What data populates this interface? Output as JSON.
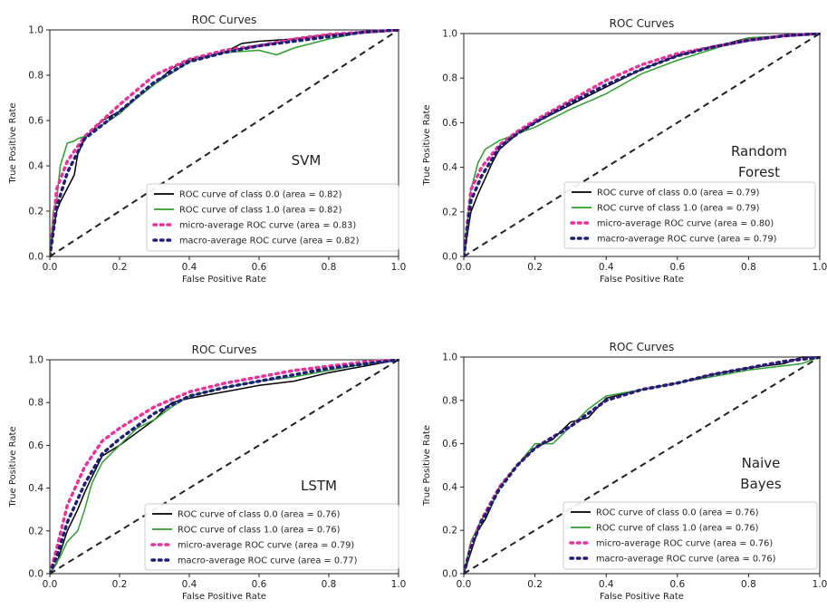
{
  "chart_data": [
    {
      "type": "line",
      "title": "ROC Curves",
      "xlabel": "False Positive Rate",
      "ylabel": "True Positive Rate",
      "annotation": [
        "SVM"
      ],
      "xlim": [
        0,
        1
      ],
      "ylim": [
        0,
        1.0
      ],
      "xticks": [
        "0.0",
        "0.2",
        "0.4",
        "0.6",
        "0.8",
        "1.0"
      ],
      "yticks": [
        "0.0",
        "0.2",
        "0.4",
        "0.6",
        "0.8",
        "1.0"
      ],
      "legend_position": "lower-right",
      "series": [
        {
          "name": "ROC curve of class 0.0 (area = 0.82)",
          "color": "#000000",
          "style": "solid",
          "x": [
            0,
            0.01,
            0.02,
            0.03,
            0.05,
            0.07,
            0.08,
            0.1,
            0.15,
            0.2,
            0.25,
            0.3,
            0.35,
            0.4,
            0.5,
            0.55,
            0.6,
            0.7,
            0.8,
            0.9,
            1.0
          ],
          "y": [
            0,
            0.12,
            0.2,
            0.24,
            0.3,
            0.36,
            0.45,
            0.52,
            0.6,
            0.64,
            0.7,
            0.76,
            0.83,
            0.87,
            0.9,
            0.94,
            0.95,
            0.96,
            0.98,
            0.99,
            1.0
          ]
        },
        {
          "name": "ROC curve of class 1.0 (area = 0.82)",
          "color": "#2ca02c",
          "style": "solid",
          "x": [
            0,
            0.01,
            0.02,
            0.03,
            0.05,
            0.07,
            0.08,
            0.1,
            0.15,
            0.2,
            0.25,
            0.3,
            0.4,
            0.5,
            0.6,
            0.65,
            0.7,
            0.8,
            0.9,
            1.0
          ],
          "y": [
            0,
            0.2,
            0.25,
            0.4,
            0.5,
            0.51,
            0.52,
            0.53,
            0.58,
            0.63,
            0.7,
            0.76,
            0.86,
            0.9,
            0.91,
            0.89,
            0.92,
            0.96,
            0.99,
            1.0
          ]
        },
        {
          "name": "micro-average ROC curve (area = 0.83)",
          "color": "#e8349a",
          "style": "dotted",
          "x": [
            0,
            0.02,
            0.05,
            0.1,
            0.15,
            0.2,
            0.3,
            0.4,
            0.5,
            0.6,
            0.7,
            0.8,
            0.9,
            1.0
          ],
          "y": [
            0,
            0.3,
            0.42,
            0.53,
            0.6,
            0.67,
            0.8,
            0.87,
            0.91,
            0.93,
            0.96,
            0.98,
            0.99,
            1.0
          ]
        },
        {
          "name": "macro-average ROC curve (area = 0.82)",
          "color": "#1f1f7a",
          "style": "dotted",
          "x": [
            0,
            0.02,
            0.05,
            0.1,
            0.15,
            0.2,
            0.3,
            0.4,
            0.5,
            0.6,
            0.7,
            0.8,
            0.9,
            1.0
          ],
          "y": [
            0,
            0.22,
            0.37,
            0.52,
            0.58,
            0.64,
            0.77,
            0.86,
            0.9,
            0.93,
            0.95,
            0.97,
            0.99,
            1.0
          ]
        },
        {
          "name": "",
          "color": "#222222",
          "style": "dashed",
          "x": [
            0,
            1
          ],
          "y": [
            0,
            1
          ]
        }
      ]
    },
    {
      "type": "line",
      "title": "ROC Curves",
      "xlabel": "False Positive Rate",
      "ylabel": "True Positive Rate",
      "annotation": [
        "Random",
        "Forest"
      ],
      "xlim": [
        0,
        1
      ],
      "ylim": [
        0,
        1.0
      ],
      "xticks": [
        "0.0",
        "0.2",
        "0.4",
        "0.6",
        "0.8",
        "1.0"
      ],
      "yticks": [
        "0.0",
        "0.2",
        "0.4",
        "0.6",
        "0.8",
        "1.0"
      ],
      "legend_position": "lower-right",
      "series": [
        {
          "name": "ROC curve of class 0.0 (area = 0.79)",
          "color": "#000000",
          "style": "solid",
          "x": [
            0,
            0.02,
            0.04,
            0.06,
            0.08,
            0.1,
            0.15,
            0.2,
            0.3,
            0.4,
            0.5,
            0.6,
            0.7,
            0.8,
            0.9,
            1.0
          ],
          "y": [
            0,
            0.2,
            0.28,
            0.35,
            0.42,
            0.48,
            0.55,
            0.6,
            0.68,
            0.76,
            0.84,
            0.9,
            0.94,
            0.98,
            0.99,
            1.0
          ]
        },
        {
          "name": "ROC curve of class 1.0 (area = 0.79)",
          "color": "#2ca02c",
          "style": "solid",
          "x": [
            0,
            0.02,
            0.04,
            0.06,
            0.08,
            0.1,
            0.15,
            0.2,
            0.3,
            0.4,
            0.5,
            0.6,
            0.7,
            0.78,
            0.8,
            0.9,
            1.0
          ],
          "y": [
            0,
            0.3,
            0.42,
            0.48,
            0.5,
            0.52,
            0.55,
            0.58,
            0.66,
            0.73,
            0.82,
            0.88,
            0.93,
            0.97,
            0.98,
            0.99,
            1.0
          ]
        },
        {
          "name": "micro-average ROC curve (area = 0.80)",
          "color": "#e8349a",
          "style": "dotted",
          "x": [
            0,
            0.02,
            0.05,
            0.1,
            0.15,
            0.2,
            0.3,
            0.4,
            0.5,
            0.6,
            0.7,
            0.8,
            0.9,
            1.0
          ],
          "y": [
            0,
            0.3,
            0.4,
            0.5,
            0.56,
            0.61,
            0.7,
            0.79,
            0.86,
            0.91,
            0.94,
            0.97,
            0.99,
            1.0
          ]
        },
        {
          "name": "macro-average ROC curve (area = 0.79)",
          "color": "#1f1f7a",
          "style": "dotted",
          "x": [
            0,
            0.02,
            0.05,
            0.1,
            0.15,
            0.2,
            0.3,
            0.4,
            0.5,
            0.6,
            0.7,
            0.8,
            0.9,
            1.0
          ],
          "y": [
            0,
            0.25,
            0.36,
            0.49,
            0.55,
            0.6,
            0.69,
            0.77,
            0.84,
            0.9,
            0.94,
            0.97,
            0.99,
            1.0
          ]
        },
        {
          "name": "",
          "color": "#222222",
          "style": "dashed",
          "x": [
            0,
            1
          ],
          "y": [
            0,
            1
          ]
        }
      ]
    },
    {
      "type": "line",
      "title": "ROC Curves",
      "xlabel": "False Positive Rate",
      "ylabel": "True Positive Rate",
      "annotation": [
        "LSTM"
      ],
      "xlim": [
        0,
        1
      ],
      "ylim": [
        0,
        1.0
      ],
      "xticks": [
        "0.0",
        "0.2",
        "0.4",
        "0.6",
        "0.8",
        "1.0"
      ],
      "yticks": [
        "0.0",
        "0.2",
        "0.4",
        "0.6",
        "0.8",
        "1.0"
      ],
      "legend_position": "lower-right",
      "series": [
        {
          "name": "ROC curve of class 0.0 (area = 0.76)",
          "color": "#000000",
          "style": "solid",
          "x": [
            0,
            0.02,
            0.05,
            0.08,
            0.1,
            0.12,
            0.15,
            0.2,
            0.25,
            0.3,
            0.35,
            0.4,
            0.5,
            0.6,
            0.7,
            0.8,
            0.9,
            1.0
          ],
          "y": [
            0,
            0.05,
            0.2,
            0.3,
            0.38,
            0.45,
            0.55,
            0.6,
            0.66,
            0.72,
            0.8,
            0.82,
            0.85,
            0.88,
            0.9,
            0.94,
            0.97,
            1.0
          ]
        },
        {
          "name": "ROC curve of class 1.0 (area = 0.76)",
          "color": "#2ca02c",
          "style": "solid",
          "x": [
            0,
            0.03,
            0.05,
            0.08,
            0.1,
            0.12,
            0.15,
            0.2,
            0.25,
            0.3,
            0.35,
            0.4,
            0.5,
            0.6,
            0.7,
            0.8,
            0.9,
            1.0
          ],
          "y": [
            0,
            0.08,
            0.15,
            0.2,
            0.3,
            0.42,
            0.52,
            0.6,
            0.68,
            0.72,
            0.78,
            0.83,
            0.87,
            0.9,
            0.92,
            0.95,
            0.98,
            1.0
          ]
        },
        {
          "name": "micro-average ROC curve (area = 0.79)",
          "color": "#e8349a",
          "style": "dotted",
          "x": [
            0,
            0.02,
            0.05,
            0.1,
            0.15,
            0.2,
            0.3,
            0.4,
            0.5,
            0.6,
            0.7,
            0.8,
            0.9,
            1.0
          ],
          "y": [
            0,
            0.12,
            0.32,
            0.5,
            0.62,
            0.68,
            0.78,
            0.85,
            0.89,
            0.92,
            0.95,
            0.97,
            0.99,
            1.0
          ]
        },
        {
          "name": "macro-average ROC curve (area = 0.77)",
          "color": "#1f1f7a",
          "style": "dotted",
          "x": [
            0,
            0.02,
            0.05,
            0.1,
            0.15,
            0.2,
            0.3,
            0.4,
            0.5,
            0.6,
            0.7,
            0.8,
            0.9,
            1.0
          ],
          "y": [
            0,
            0.08,
            0.24,
            0.42,
            0.56,
            0.63,
            0.75,
            0.83,
            0.87,
            0.9,
            0.93,
            0.96,
            0.98,
            1.0
          ]
        },
        {
          "name": "",
          "color": "#222222",
          "style": "dashed",
          "x": [
            0,
            1
          ],
          "y": [
            0,
            1
          ]
        }
      ]
    },
    {
      "type": "line",
      "title": "ROC Curves",
      "xlabel": "False Positive Rate",
      "ylabel": "True Positive Rate",
      "annotation": [
        "Naive",
        "Bayes"
      ],
      "xlim": [
        0,
        1
      ],
      "ylim": [
        0,
        1.0
      ],
      "xticks": [
        "0.0",
        "0.2",
        "0.4",
        "0.6",
        "0.8",
        "1.0"
      ],
      "yticks": [
        "0.0",
        "0.2",
        "0.4",
        "0.6",
        "0.8",
        "1.0"
      ],
      "legend_position": "lower-right",
      "series": [
        {
          "name": "ROC curve of class 0.0 (area = 0.76)",
          "color": "#000000",
          "style": "solid",
          "x": [
            0,
            0.02,
            0.04,
            0.06,
            0.08,
            0.1,
            0.15,
            0.2,
            0.25,
            0.3,
            0.35,
            0.4,
            0.5,
            0.6,
            0.7,
            0.8,
            0.9,
            0.95,
            1.0
          ],
          "y": [
            0,
            0.1,
            0.2,
            0.25,
            0.32,
            0.4,
            0.5,
            0.58,
            0.62,
            0.7,
            0.72,
            0.81,
            0.85,
            0.88,
            0.92,
            0.95,
            0.97,
            1.0,
            1.0
          ]
        },
        {
          "name": "ROC curve of class 1.0 (area = 0.76)",
          "color": "#2ca02c",
          "style": "solid",
          "x": [
            0,
            0.02,
            0.05,
            0.08,
            0.1,
            0.15,
            0.2,
            0.25,
            0.3,
            0.35,
            0.4,
            0.5,
            0.6,
            0.7,
            0.8,
            0.9,
            0.95,
            1.0
          ],
          "y": [
            0,
            0.15,
            0.25,
            0.32,
            0.4,
            0.5,
            0.6,
            0.6,
            0.68,
            0.76,
            0.82,
            0.85,
            0.88,
            0.91,
            0.94,
            0.96,
            0.97,
            1.0
          ]
        },
        {
          "name": "micro-average ROC curve (area = 0.76)",
          "color": "#e8349a",
          "style": "dotted",
          "x": [
            0,
            0.02,
            0.05,
            0.1,
            0.15,
            0.2,
            0.3,
            0.4,
            0.5,
            0.6,
            0.7,
            0.8,
            0.9,
            1.0
          ],
          "y": [
            0,
            0.13,
            0.25,
            0.4,
            0.5,
            0.58,
            0.68,
            0.8,
            0.85,
            0.88,
            0.92,
            0.95,
            0.98,
            1.0
          ]
        },
        {
          "name": "macro-average ROC curve (area = 0.76)",
          "color": "#1f1f7a",
          "style": "dotted",
          "x": [
            0,
            0.02,
            0.05,
            0.1,
            0.15,
            0.2,
            0.3,
            0.4,
            0.5,
            0.6,
            0.7,
            0.8,
            0.9,
            1.0
          ],
          "y": [
            0,
            0.12,
            0.24,
            0.39,
            0.5,
            0.58,
            0.68,
            0.8,
            0.85,
            0.88,
            0.92,
            0.95,
            0.98,
            1.0
          ]
        },
        {
          "name": "",
          "color": "#222222",
          "style": "dashed",
          "x": [
            0,
            1
          ],
          "y": [
            0,
            1
          ]
        }
      ]
    }
  ]
}
